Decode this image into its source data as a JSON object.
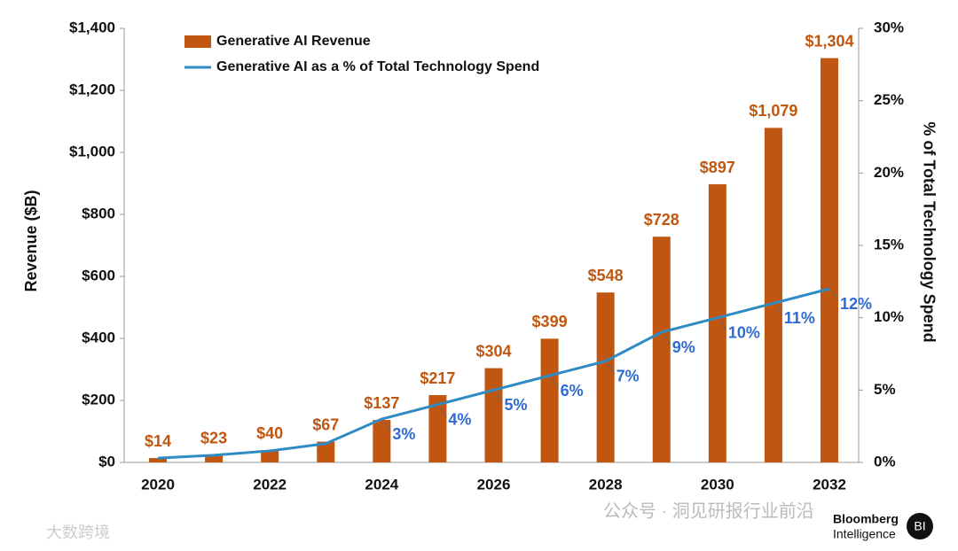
{
  "chart_data": {
    "type": "bar",
    "categories": [
      "2020",
      null,
      "2022",
      null,
      "2024",
      null,
      "2026",
      null,
      "2028",
      null,
      "2030",
      null,
      "2032"
    ],
    "series": [
      {
        "name": "Generative AI Revenue",
        "type": "bar",
        "color": "#c0560f",
        "label_color": "#c0560f",
        "values": [
          14,
          23,
          40,
          67,
          137,
          217,
          304,
          399,
          548,
          728,
          897,
          1079,
          1304
        ],
        "value_labels": [
          "$14",
          "$23",
          "$40",
          "$67",
          "$137",
          "$217",
          "$304",
          "$399",
          "$548",
          "$728",
          "$897",
          "$1,079",
          "$1,304"
        ]
      },
      {
        "name": "Generative AI as a % of Total Technology Spend",
        "type": "line",
        "axis": "y2",
        "color": "#2e8bc4",
        "label_color": "#2f6bd0",
        "values": [
          0.3,
          0.5,
          0.8,
          1.3,
          3,
          4,
          5,
          6,
          7,
          9,
          10,
          11,
          12
        ],
        "value_labels": [
          null,
          null,
          null,
          null,
          "3%",
          "4%",
          "5%",
          "6%",
          "7%",
          "9%",
          "10%",
          "11%",
          "12%"
        ]
      }
    ],
    "y_label": "Revenue ($B)",
    "y2_label": "% of Total Technology Spend",
    "ylim": [
      0,
      1400
    ],
    "yticks": [
      {
        "value": 0,
        "label": "$0"
      },
      {
        "value": 200,
        "label": "$200"
      },
      {
        "value": 400,
        "label": "$400"
      },
      {
        "value": 600,
        "label": "$600"
      },
      {
        "value": 800,
        "label": "$800"
      },
      {
        "value": 1000,
        "label": "$1,000"
      },
      {
        "value": 1200,
        "label": "$1,200"
      },
      {
        "value": 1400,
        "label": "$1,400"
      }
    ],
    "y2lim": [
      0,
      30
    ],
    "y2ticks": [
      {
        "value": 0,
        "label": "0%"
      },
      {
        "value": 5,
        "label": "5%"
      },
      {
        "value": 10,
        "label": "10%"
      },
      {
        "value": 15,
        "label": "15%"
      },
      {
        "value": 20,
        "label": "20%"
      },
      {
        "value": 25,
        "label": "25%"
      },
      {
        "value": 30,
        "label": "30%"
      }
    ],
    "legend": "top-left",
    "source": [
      "Bloomberg",
      "Intelligence"
    ],
    "logo": "BI",
    "watermarks": [
      "公众号 · 洞见研报行业前沿",
      "大数跨境"
    ]
  }
}
